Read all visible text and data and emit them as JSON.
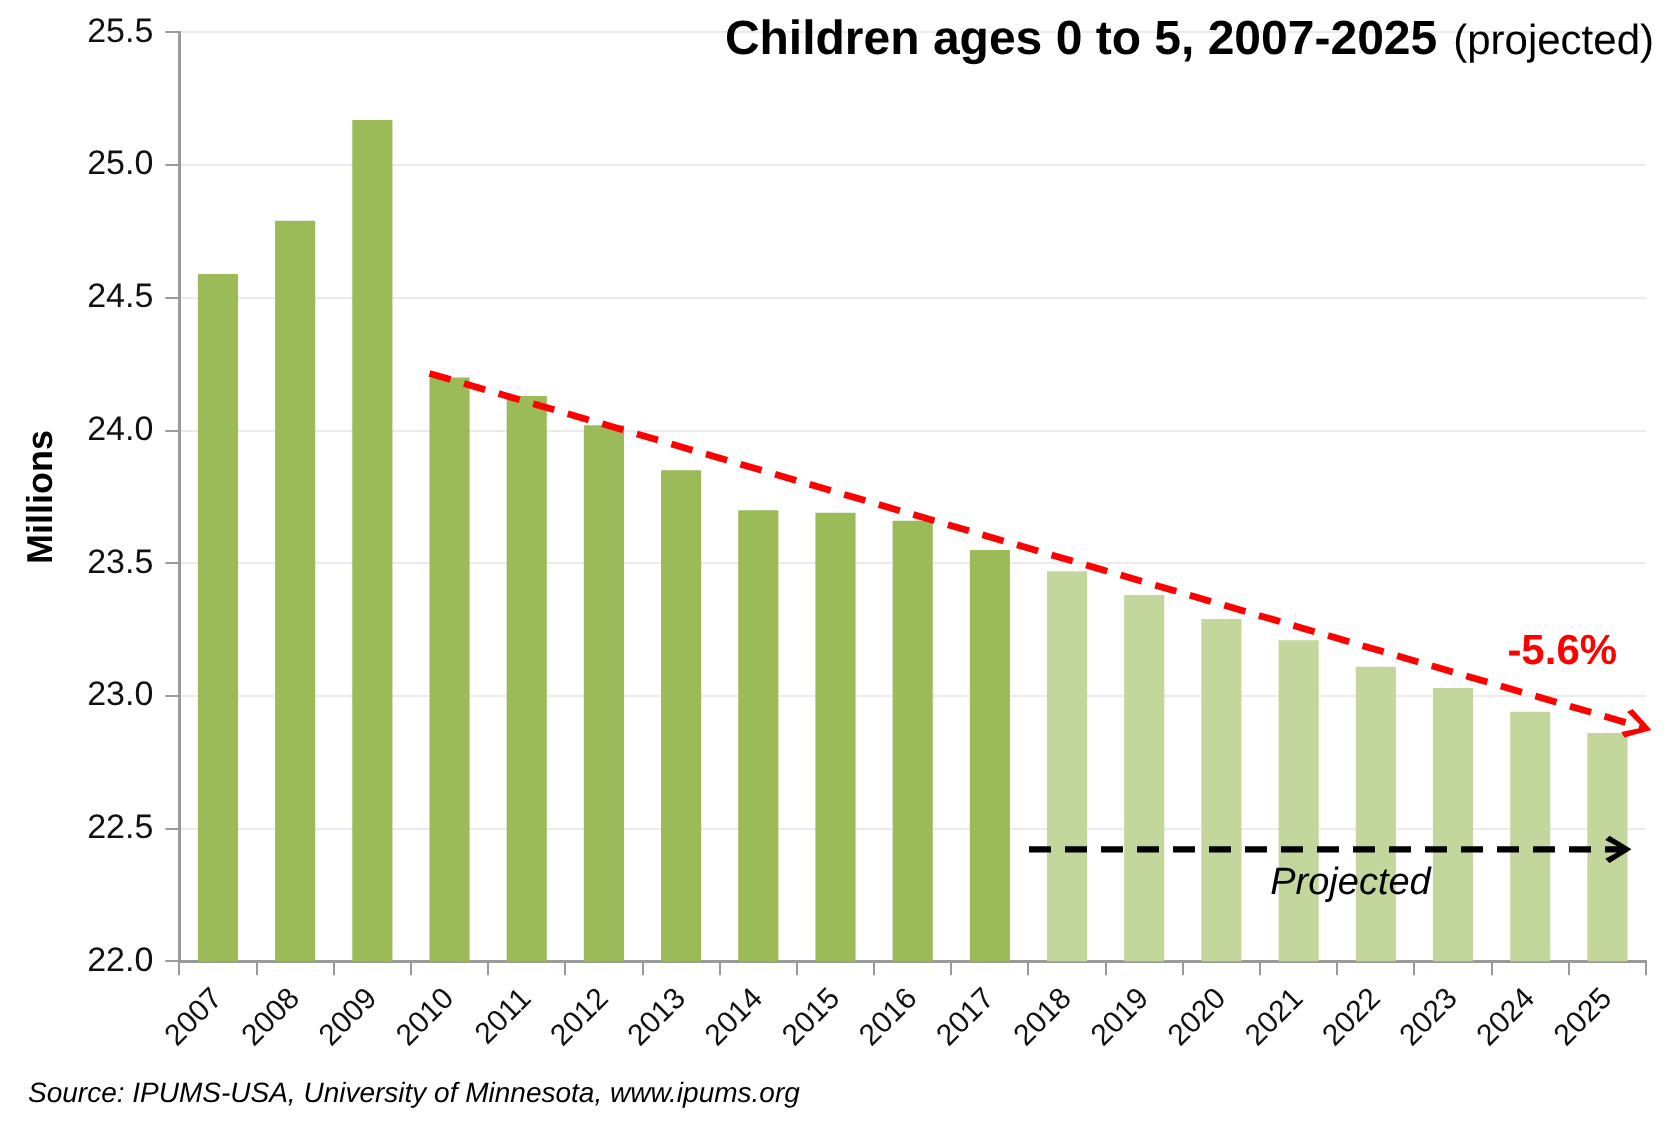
{
  "chart_data": {
    "type": "bar",
    "title": "Children ages 0 to 5, 2007-2025",
    "subtitle": "(projected)",
    "ylabel": "Millions",
    "annotations": [
      "-5.6%",
      "Projected",
      "Source: IPUMS-USA, University of Minnesota, www.ipums.org"
    ],
    "categories": [
      "2007",
      "2008",
      "2009",
      "2010",
      "2011",
      "2012",
      "2013",
      "2014",
      "2015",
      "2016",
      "2017",
      "2018",
      "2019",
      "2020",
      "2021",
      "2022",
      "2023",
      "2024",
      "2025"
    ],
    "series": [
      {
        "color": "#9bbb59",
        "values": [
          24.59,
          24.79,
          25.17,
          24.2,
          24.13,
          24.02,
          23.85,
          23.7,
          23.69,
          23.66,
          23.55,
          null,
          null,
          null,
          null,
          null,
          null,
          null,
          null
        ]
      },
      {
        "color": "#c3d69b",
        "values": [
          null,
          null,
          null,
          null,
          null,
          null,
          null,
          null,
          null,
          null,
          null,
          23.47,
          23.38,
          23.29,
          23.21,
          23.11,
          23.03,
          22.94,
          22.86
        ]
      }
    ],
    "ylim": [
      22,
      25.5
    ],
    "yticks": [
      {
        "value": 22,
        "label": "22.0"
      },
      22.5,
      {
        "value": 23,
        "label": "23.0"
      },
      23.5,
      {
        "value": 24,
        "label": "24.0"
      },
      24.5,
      {
        "value": 25,
        "label": "25.0"
      },
      25.5
    ],
    "grid": "y"
  }
}
